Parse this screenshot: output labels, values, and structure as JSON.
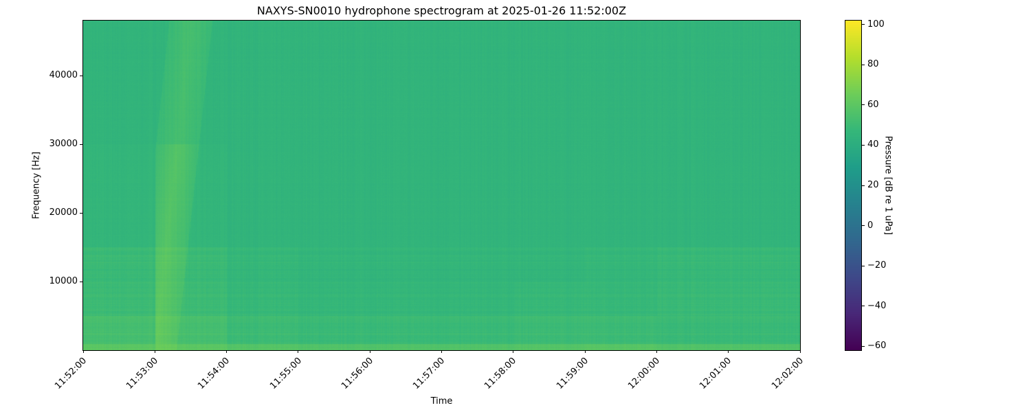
{
  "chart_data": {
    "type": "heatmap",
    "title": "NAXYS-SN0010 hydrophone spectrogram at 2025-01-26 11:52:00Z",
    "xlabel": "Time",
    "ylabel": "Frequency [Hz]",
    "colorbar_label": "Pressure [dB re 1 uPa]",
    "colormap": "viridis",
    "xlim": [
      "11:52:00",
      "12:02:00"
    ],
    "ylim": [
      0,
      48000
    ],
    "clim": [
      -62,
      102
    ],
    "x_ticks": [
      "11:52:00",
      "11:53:00",
      "11:54:00",
      "11:55:00",
      "11:56:00",
      "11:57:00",
      "11:58:00",
      "11:59:00",
      "12:00:00",
      "12:01:00",
      "12:02:00"
    ],
    "y_ticks": [
      10000,
      20000,
      30000,
      40000
    ],
    "colorbar_ticks": [
      -60,
      -40,
      -20,
      0,
      20,
      40,
      60,
      80,
      100
    ],
    "grid": false,
    "approx_levels_db": {
      "time_bins": [
        "11:52",
        "11:53",
        "11:54",
        "11:55",
        "11:56",
        "11:57",
        "11:58",
        "11:59",
        "12:00",
        "12:01"
      ],
      "freq_bands_hz": [
        "0-1000",
        "1000-5000",
        "5000-10000",
        "10000-15000",
        "15000-30000",
        "30000-48000"
      ],
      "values": [
        [
          60,
          62,
          58,
          57,
          57,
          57,
          58,
          59,
          57,
          57
        ],
        [
          53,
          60,
          50,
          49,
          49,
          49,
          50,
          50,
          49,
          49
        ],
        [
          50,
          58,
          48,
          47,
          47,
          47,
          48,
          48,
          49,
          49
        ],
        [
          49,
          57,
          47,
          46,
          46,
          46,
          46,
          47,
          48,
          48
        ],
        [
          46,
          55,
          45,
          45,
          45,
          45,
          45,
          45,
          45,
          45
        ],
        [
          45,
          50,
          45,
          45,
          45,
          45,
          45,
          45,
          45,
          45
        ]
      ]
    }
  }
}
